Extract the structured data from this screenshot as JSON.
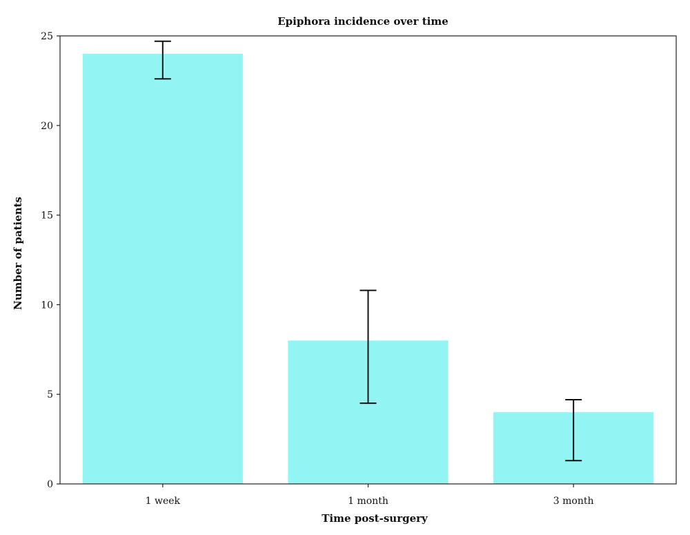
{
  "chart_data": {
    "type": "bar",
    "title": "Epiphora incidence over time",
    "xlabel": "Time post-surgery",
    "ylabel": "Number of patients",
    "categories": [
      "1 week",
      "1 month",
      "3 month"
    ],
    "values": [
      24,
      8,
      4
    ],
    "error_low": [
      22.6,
      4.5,
      1.3
    ],
    "error_high": [
      24.7,
      10.8,
      4.7
    ],
    "ylim": [
      0,
      25
    ],
    "yticks": [
      0,
      5,
      10,
      15,
      20,
      25
    ],
    "bar_color": "#93F4F4",
    "grid": false,
    "legend": false
  }
}
